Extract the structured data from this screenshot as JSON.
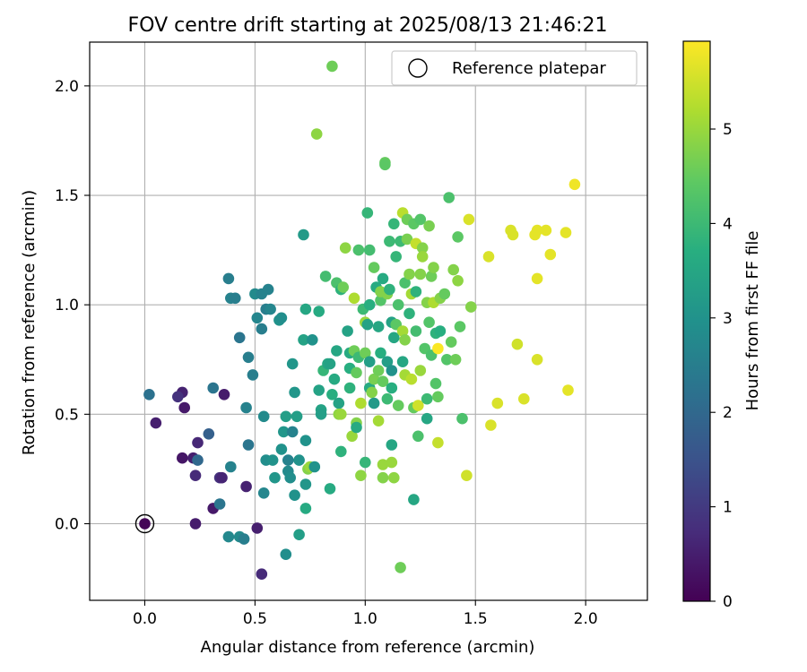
{
  "chart_data": {
    "type": "scatter",
    "title": "FOV centre drift starting at 2025/08/13 21:46:21",
    "xlabel": "Angular distance from reference (arcmin)",
    "ylabel": "Rotation from reference (arcmin)",
    "xlim": [
      -0.25,
      2.28
    ],
    "ylim": [
      -0.35,
      2.2
    ],
    "x_ticks": [
      "0.0",
      "0.5",
      "1.0",
      "1.5",
      "2.0"
    ],
    "y_ticks": [
      "0.0",
      "0.5",
      "1.0",
      "1.5",
      "2.0"
    ],
    "grid": true,
    "legend": {
      "position": "upper right",
      "entries": [
        "Reference platepar"
      ]
    },
    "reference_point": {
      "x": 0.0,
      "y": 0.0
    },
    "colorbar": {
      "label": "Hours from first FF file",
      "range": [
        0,
        5.93
      ],
      "ticks": [
        "0",
        "1",
        "2",
        "3",
        "4",
        "5"
      ],
      "colormap": "viridis"
    },
    "points": [
      [
        0.0,
        0.0,
        0.05
      ],
      [
        0.17,
        0.6,
        0.55
      ],
      [
        0.18,
        0.53,
        0.4
      ],
      [
        0.15,
        0.58,
        0.85
      ],
      [
        0.05,
        0.46,
        0.5
      ],
      [
        0.02,
        0.59,
        2.2
      ],
      [
        0.17,
        0.3,
        0.35
      ],
      [
        0.22,
        0.3,
        0.5
      ],
      [
        0.23,
        0.22,
        0.7
      ],
      [
        0.24,
        0.37,
        0.65
      ],
      [
        0.24,
        0.29,
        2.0
      ],
      [
        0.29,
        0.41,
        1.8
      ],
      [
        0.31,
        0.62,
        2.3
      ],
      [
        0.31,
        0.07,
        0.4
      ],
      [
        0.34,
        0.21,
        0.85
      ],
      [
        0.35,
        0.21,
        0.6
      ],
      [
        0.36,
        0.59,
        0.45
      ],
      [
        0.23,
        0.0,
        0.45
      ],
      [
        0.34,
        0.09,
        2.3
      ],
      [
        0.38,
        -0.06,
        2.75
      ],
      [
        0.39,
        0.26,
        2.6
      ],
      [
        0.38,
        1.12,
        2.5
      ],
      [
        0.39,
        1.03,
        2.6
      ],
      [
        0.41,
        1.03,
        2.5
      ],
      [
        0.43,
        0.85,
        2.3
      ],
      [
        0.43,
        -0.06,
        2.8
      ],
      [
        0.45,
        -0.07,
        2.5
      ],
      [
        0.46,
        0.17,
        0.55
      ],
      [
        0.46,
        0.53,
        2.6
      ],
      [
        0.47,
        0.76,
        2.5
      ],
      [
        0.47,
        0.36,
        2.3
      ],
      [
        0.49,
        0.68,
        2.5
      ],
      [
        0.5,
        1.05,
        2.8
      ],
      [
        0.51,
        -0.02,
        0.5
      ],
      [
        0.51,
        0.94,
        2.7
      ],
      [
        0.53,
        -0.23,
        0.7
      ],
      [
        0.53,
        1.05,
        2.6
      ],
      [
        0.53,
        0.89,
        2.5
      ],
      [
        0.54,
        0.49,
        2.8
      ],
      [
        0.54,
        0.14,
        2.7
      ],
      [
        0.55,
        0.98,
        2.5
      ],
      [
        0.55,
        0.29,
        2.9
      ],
      [
        0.56,
        1.07,
        2.6
      ],
      [
        0.57,
        0.98,
        2.7
      ],
      [
        0.58,
        0.29,
        3.0
      ],
      [
        0.59,
        0.21,
        3.1
      ],
      [
        0.61,
        0.93,
        3.0
      ],
      [
        0.62,
        0.34,
        3.0
      ],
      [
        0.62,
        0.94,
        2.9
      ],
      [
        0.63,
        0.42,
        3.1
      ],
      [
        0.64,
        0.49,
        3.3
      ],
      [
        0.64,
        -0.14,
        2.9
      ],
      [
        0.65,
        0.29,
        2.6
      ],
      [
        0.65,
        0.24,
        2.8
      ],
      [
        0.66,
        0.21,
        2.9
      ],
      [
        0.67,
        0.73,
        3.1
      ],
      [
        0.67,
        0.42,
        2.6
      ],
      [
        0.68,
        0.13,
        3.0
      ],
      [
        0.68,
        0.6,
        3.1
      ],
      [
        0.69,
        0.49,
        3.3
      ],
      [
        0.7,
        0.29,
        3.0
      ],
      [
        0.7,
        -0.05,
        3.3
      ],
      [
        0.72,
        1.32,
        3.2
      ],
      [
        0.72,
        0.84,
        3.4
      ],
      [
        0.73,
        0.98,
        3.5
      ],
      [
        0.73,
        0.38,
        3.0
      ],
      [
        0.73,
        0.18,
        3.1
      ],
      [
        0.73,
        0.07,
        3.6
      ],
      [
        0.74,
        0.25,
        4.8
      ],
      [
        0.75,
        0.26,
        5.0
      ],
      [
        0.76,
        0.84,
        3.0
      ],
      [
        0.77,
        0.26,
        3.0
      ],
      [
        0.78,
        1.78,
        4.9
      ],
      [
        0.79,
        0.97,
        3.6
      ],
      [
        0.79,
        0.61,
        3.4
      ],
      [
        0.8,
        0.52,
        3.4
      ],
      [
        0.8,
        0.5,
        3.3
      ],
      [
        0.81,
        0.7,
        3.9
      ],
      [
        0.82,
        1.13,
        4.1
      ],
      [
        0.83,
        0.73,
        3.5
      ],
      [
        0.84,
        0.73,
        3.4
      ],
      [
        0.84,
        0.16,
        3.6
      ],
      [
        0.85,
        2.09,
        4.6
      ],
      [
        0.85,
        0.59,
        3.7
      ],
      [
        0.86,
        0.66,
        3.6
      ],
      [
        0.87,
        1.1,
        4.2
      ],
      [
        0.87,
        0.79,
        3.5
      ],
      [
        0.88,
        0.55,
        3.4
      ],
      [
        0.88,
        0.5,
        4.9
      ],
      [
        0.89,
        1.07,
        3.8
      ],
      [
        0.89,
        0.5,
        5.0
      ],
      [
        0.9,
        1.08,
        4.6
      ],
      [
        0.89,
        0.33,
        3.8
      ],
      [
        0.91,
        1.26,
        4.9
      ],
      [
        0.92,
        0.88,
        3.4
      ],
      [
        0.93,
        0.78,
        3.6
      ],
      [
        0.93,
        0.71,
        3.7
      ],
      [
        0.93,
        0.62,
        3.8
      ],
      [
        0.94,
        0.4,
        5.0
      ],
      [
        0.95,
        1.03,
        5.2
      ],
      [
        0.95,
        0.79,
        4.6
      ],
      [
        0.96,
        0.69,
        4.5
      ],
      [
        0.96,
        0.46,
        4.8
      ],
      [
        0.96,
        0.44,
        3.6
      ],
      [
        0.97,
        1.25,
        4.2
      ],
      [
        0.97,
        0.76,
        4.0
      ],
      [
        0.98,
        0.55,
        5.2
      ],
      [
        0.98,
        0.22,
        4.9
      ],
      [
        0.99,
        0.98,
        4.0
      ],
      [
        1.0,
        0.92,
        5.0
      ],
      [
        1.0,
        0.78,
        4.6
      ],
      [
        1.0,
        0.28,
        3.9
      ],
      [
        1.01,
        1.42,
        3.9
      ],
      [
        1.01,
        0.91,
        3.4
      ],
      [
        1.02,
        1.25,
        4.1
      ],
      [
        1.02,
        1.0,
        3.7
      ],
      [
        1.02,
        0.74,
        3.3
      ],
      [
        1.02,
        0.62,
        3.6
      ],
      [
        1.03,
        0.6,
        4.8
      ],
      [
        1.04,
        1.17,
        4.5
      ],
      [
        1.04,
        0.66,
        4.7
      ],
      [
        1.04,
        0.55,
        3.2
      ],
      [
        1.05,
        1.08,
        3.6
      ],
      [
        1.06,
        0.9,
        3.5
      ],
      [
        1.06,
        0.7,
        4.6
      ],
      [
        1.06,
        0.47,
        5.1
      ],
      [
        1.07,
        1.02,
        4.3
      ],
      [
        1.07,
        1.06,
        4.8
      ],
      [
        1.07,
        0.78,
        3.7
      ],
      [
        1.08,
        1.12,
        3.6
      ],
      [
        1.08,
        0.65,
        4.5
      ],
      [
        1.08,
        0.27,
        5.0
      ],
      [
        1.08,
        0.21,
        4.8
      ],
      [
        1.09,
        1.65,
        4.5
      ],
      [
        1.09,
        1.64,
        4.4
      ],
      [
        1.1,
        1.05,
        4.8
      ],
      [
        1.1,
        0.74,
        3.3
      ],
      [
        1.1,
        0.57,
        4.0
      ],
      [
        1.11,
        1.29,
        4.0
      ],
      [
        1.11,
        1.07,
        3.8
      ],
      [
        1.12,
        0.92,
        3.4
      ],
      [
        1.12,
        0.7,
        3.0
      ],
      [
        1.12,
        0.62,
        3.7
      ],
      [
        1.12,
        0.36,
        3.5
      ],
      [
        1.12,
        0.28,
        5.0
      ],
      [
        1.13,
        1.37,
        3.9
      ],
      [
        1.13,
        0.85,
        3.5
      ],
      [
        1.13,
        0.21,
        4.9
      ],
      [
        1.14,
        1.22,
        3.9
      ],
      [
        1.14,
        0.91,
        4.4
      ],
      [
        1.15,
        1.0,
        4.2
      ],
      [
        1.15,
        0.54,
        4.5
      ],
      [
        1.16,
        -0.2,
        4.6
      ],
      [
        1.16,
        1.29,
        4.0
      ],
      [
        1.17,
        1.42,
        5.3
      ],
      [
        1.17,
        0.88,
        5.1
      ],
      [
        1.17,
        0.74,
        3.5
      ],
      [
        1.18,
        1.1,
        4.2
      ],
      [
        1.18,
        0.84,
        4.8
      ],
      [
        1.18,
        0.68,
        5.1
      ],
      [
        1.19,
        1.39,
        4.6
      ],
      [
        1.19,
        1.3,
        4.7
      ],
      [
        1.2,
        1.14,
        4.8
      ],
      [
        1.2,
        0.96,
        3.8
      ],
      [
        1.21,
        1.05,
        5.1
      ],
      [
        1.21,
        0.66,
        5.3
      ],
      [
        1.22,
        1.37,
        4.4
      ],
      [
        1.22,
        0.53,
        4.5
      ],
      [
        1.22,
        0.11,
        3.5
      ],
      [
        1.23,
        1.28,
        5.4
      ],
      [
        1.23,
        1.06,
        3.8
      ],
      [
        1.23,
        0.88,
        4.1
      ],
      [
        1.24,
        0.4,
        4.2
      ],
      [
        1.24,
        0.54,
        5.5
      ],
      [
        1.25,
        1.39,
        4.3
      ],
      [
        1.25,
        1.14,
        4.8
      ],
      [
        1.25,
        0.7,
        5.0
      ],
      [
        1.26,
        1.26,
        4.8
      ],
      [
        1.26,
        1.22,
        5.0
      ],
      [
        1.27,
        0.8,
        4.3
      ],
      [
        1.28,
        1.01,
        4.8
      ],
      [
        1.28,
        0.57,
        4.0
      ],
      [
        1.28,
        0.48,
        3.5
      ],
      [
        1.29,
        1.36,
        4.7
      ],
      [
        1.29,
        0.92,
        4.3
      ],
      [
        1.3,
        1.13,
        4.6
      ],
      [
        1.3,
        0.77,
        4.2
      ],
      [
        1.31,
        1.17,
        4.8
      ],
      [
        1.31,
        1.01,
        5.2
      ],
      [
        1.32,
        0.87,
        3.8
      ],
      [
        1.32,
        0.64,
        4.3
      ],
      [
        1.33,
        0.58,
        4.5
      ],
      [
        1.33,
        0.37,
        5.4
      ],
      [
        1.33,
        0.8,
        5.9
      ],
      [
        1.34,
        1.03,
        4.8
      ],
      [
        1.34,
        0.88,
        3.7
      ],
      [
        1.36,
        1.05,
        4.5
      ],
      [
        1.37,
        0.75,
        4.3
      ],
      [
        1.38,
        1.49,
        4.2
      ],
      [
        1.39,
        0.83,
        4.5
      ],
      [
        1.4,
        1.16,
        4.8
      ],
      [
        1.41,
        0.75,
        4.6
      ],
      [
        1.42,
        1.31,
        4.4
      ],
      [
        1.42,
        1.11,
        4.9
      ],
      [
        1.43,
        0.9,
        4.4
      ],
      [
        1.44,
        0.48,
        4.2
      ],
      [
        1.46,
        0.22,
        5.5
      ],
      [
        1.47,
        1.39,
        5.6
      ],
      [
        1.48,
        0.99,
        4.8
      ],
      [
        1.56,
        1.22,
        5.6
      ],
      [
        1.57,
        0.45,
        5.6
      ],
      [
        1.6,
        0.55,
        5.6
      ],
      [
        1.66,
        1.34,
        5.6
      ],
      [
        1.67,
        1.32,
        5.6
      ],
      [
        1.69,
        0.82,
        5.5
      ],
      [
        1.72,
        0.57,
        5.6
      ],
      [
        1.77,
        1.32,
        5.7
      ],
      [
        1.78,
        1.34,
        5.7
      ],
      [
        1.78,
        1.12,
        5.7
      ],
      [
        1.78,
        0.75,
        5.6
      ],
      [
        1.82,
        1.34,
        5.7
      ],
      [
        1.84,
        1.23,
        5.7
      ],
      [
        1.91,
        1.33,
        5.7
      ],
      [
        1.92,
        0.61,
        5.7
      ],
      [
        1.95,
        1.55,
        5.8
      ]
    ]
  }
}
